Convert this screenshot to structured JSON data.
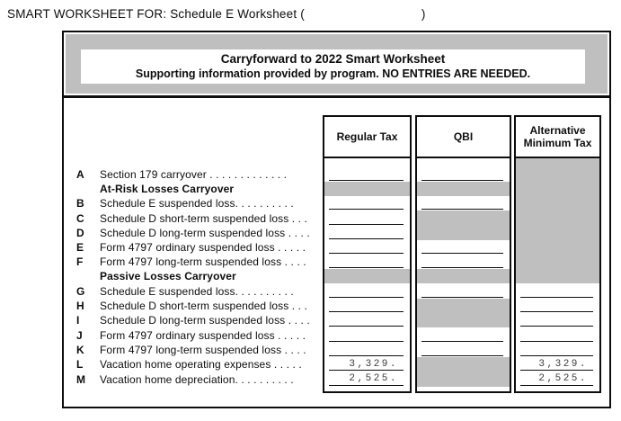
{
  "topline": {
    "label": "SMART WORKSHEET FOR: Schedule E Worksheet",
    "paren_open": "(",
    "paren_close": ")",
    "blank_value": ""
  },
  "title": {
    "heading": "Carryforward to 2022 Smart Worksheet",
    "subheading": "Supporting information provided by program. NO ENTRIES ARE NEEDED."
  },
  "columns": [
    {
      "id": "regular_tax",
      "label": "Regular Tax"
    },
    {
      "id": "qbi",
      "label": "QBI"
    },
    {
      "id": "amt",
      "label": "Alternative Minimum Tax"
    }
  ],
  "colors": {
    "shaded": "#bfbfbf",
    "ink": "#0d0d0d",
    "value_ink": "#3c3c3c"
  },
  "rows": [
    {
      "letter": "A",
      "tall": true,
      "label": "Section 179 carryover . . . . . . . . . . . . .",
      "cells": {
        "regular_tax": {
          "state": "entry",
          "value": ""
        },
        "qbi": {
          "state": "entry",
          "value": ""
        },
        "amt": {
          "state": "shaded",
          "value": ""
        }
      }
    },
    {
      "heading": true,
      "label": "At-Risk Losses Carryover",
      "cells": {
        "regular_tax": {
          "state": "shaded",
          "value": ""
        },
        "qbi": {
          "state": "shaded",
          "value": ""
        },
        "amt": {
          "state": "shaded",
          "value": ""
        }
      }
    },
    {
      "letter": "B",
      "label": "Schedule E suspended loss. . . . . . . . . .",
      "cells": {
        "regular_tax": {
          "state": "entry",
          "value": ""
        },
        "qbi": {
          "state": "entry",
          "value": ""
        },
        "amt": {
          "state": "shaded",
          "value": ""
        }
      }
    },
    {
      "letter": "C",
      "label": "Schedule D short-term suspended loss  . . .",
      "cells": {
        "regular_tax": {
          "state": "entry",
          "value": ""
        },
        "qbi": {
          "state": "shaded",
          "value": ""
        },
        "amt": {
          "state": "shaded",
          "value": ""
        }
      }
    },
    {
      "letter": "D",
      "label": "Schedule D long-term suspended loss . . . .",
      "cells": {
        "regular_tax": {
          "state": "entry",
          "value": ""
        },
        "qbi": {
          "state": "shaded",
          "value": ""
        },
        "amt": {
          "state": "shaded",
          "value": ""
        }
      }
    },
    {
      "letter": "E",
      "label": "Form 4797 ordinary suspended loss . . . . .",
      "cells": {
        "regular_tax": {
          "state": "entry",
          "value": ""
        },
        "qbi": {
          "state": "entry",
          "value": ""
        },
        "amt": {
          "state": "shaded",
          "value": ""
        }
      }
    },
    {
      "letter": "F",
      "label": "Form 4797 long-term suspended loss  . . . .",
      "cells": {
        "regular_tax": {
          "state": "entry",
          "value": ""
        },
        "qbi": {
          "state": "entry",
          "value": ""
        },
        "amt": {
          "state": "shaded",
          "value": ""
        }
      }
    },
    {
      "heading": true,
      "label": "Passive Losses Carryover",
      "cells": {
        "regular_tax": {
          "state": "shaded",
          "value": ""
        },
        "qbi": {
          "state": "shaded",
          "value": ""
        },
        "amt": {
          "state": "shaded",
          "value": ""
        }
      }
    },
    {
      "letter": "G",
      "label": "Schedule E suspended loss. . . . . . . . . .",
      "cells": {
        "regular_tax": {
          "state": "entry",
          "value": ""
        },
        "qbi": {
          "state": "entry",
          "value": ""
        },
        "amt": {
          "state": "entry",
          "value": ""
        }
      }
    },
    {
      "letter": "H",
      "label": "Schedule D short-term suspended loss  . . .",
      "cells": {
        "regular_tax": {
          "state": "entry",
          "value": ""
        },
        "qbi": {
          "state": "shaded",
          "value": ""
        },
        "amt": {
          "state": "entry",
          "value": ""
        }
      }
    },
    {
      "letter": "I",
      "label": "Schedule D long-term suspended loss . . . .",
      "cells": {
        "regular_tax": {
          "state": "entry",
          "value": ""
        },
        "qbi": {
          "state": "shaded",
          "value": ""
        },
        "amt": {
          "state": "entry",
          "value": ""
        }
      }
    },
    {
      "letter": "J",
      "label": "Form 4797 ordinary suspended loss . . . . .",
      "cells": {
        "regular_tax": {
          "state": "entry",
          "value": ""
        },
        "qbi": {
          "state": "entry",
          "value": ""
        },
        "amt": {
          "state": "entry",
          "value": ""
        }
      }
    },
    {
      "letter": "K",
      "label": "Form 4797 long-term suspended loss  . . . .",
      "cells": {
        "regular_tax": {
          "state": "entry",
          "value": ""
        },
        "qbi": {
          "state": "entry",
          "value": ""
        },
        "amt": {
          "state": "entry",
          "value": ""
        }
      }
    },
    {
      "letter": "L",
      "label": "Vacation home operating expenses  . . . . .",
      "cells": {
        "regular_tax": {
          "state": "entry",
          "value": "3,329."
        },
        "qbi": {
          "state": "shaded",
          "value": ""
        },
        "amt": {
          "state": "entry",
          "value": "3,329."
        }
      }
    },
    {
      "letter": "M",
      "label": "Vacation home depreciation. . . . . . . . . .",
      "cells": {
        "regular_tax": {
          "state": "entry",
          "value": "2,525."
        },
        "qbi": {
          "state": "shaded",
          "value": ""
        },
        "amt": {
          "state": "entry",
          "value": "2,525."
        }
      }
    }
  ]
}
